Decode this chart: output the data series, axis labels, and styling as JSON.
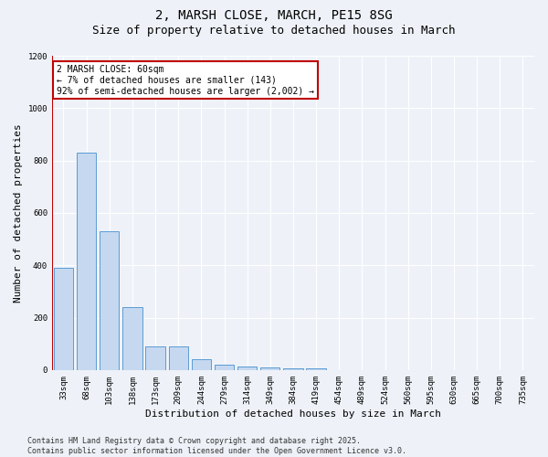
{
  "title1": "2, MARSH CLOSE, MARCH, PE15 8SG",
  "title2": "Size of property relative to detached houses in March",
  "xlabel": "Distribution of detached houses by size in March",
  "ylabel": "Number of detached properties",
  "categories": [
    "33sqm",
    "68sqm",
    "103sqm",
    "138sqm",
    "173sqm",
    "209sqm",
    "244sqm",
    "279sqm",
    "314sqm",
    "349sqm",
    "384sqm",
    "419sqm",
    "454sqm",
    "489sqm",
    "524sqm",
    "560sqm",
    "595sqm",
    "630sqm",
    "665sqm",
    "700sqm",
    "735sqm"
  ],
  "values": [
    390,
    830,
    530,
    240,
    90,
    90,
    40,
    20,
    15,
    10,
    8,
    5,
    0,
    0,
    0,
    0,
    0,
    0,
    0,
    0,
    0
  ],
  "bar_color": "#c5d8f0",
  "bar_edge_color": "#5b9bd5",
  "vline_color": "#c00000",
  "annotation_text": "2 MARSH CLOSE: 60sqm\n← 7% of detached houses are smaller (143)\n92% of semi-detached houses are larger (2,002) →",
  "annotation_box_color": "#ffffff",
  "annotation_box_edge": "#c00000",
  "ylim": [
    0,
    1200
  ],
  "yticks": [
    0,
    200,
    400,
    600,
    800,
    1000,
    1200
  ],
  "footer": "Contains HM Land Registry data © Crown copyright and database right 2025.\nContains public sector information licensed under the Open Government Licence v3.0.",
  "bg_color": "#eef2f8",
  "plot_bg_color": "#eef2f8",
  "grid_color": "#ffffff",
  "title1_fontsize": 10,
  "title2_fontsize": 9,
  "tick_fontsize": 6.5,
  "label_fontsize": 8,
  "footer_fontsize": 6
}
